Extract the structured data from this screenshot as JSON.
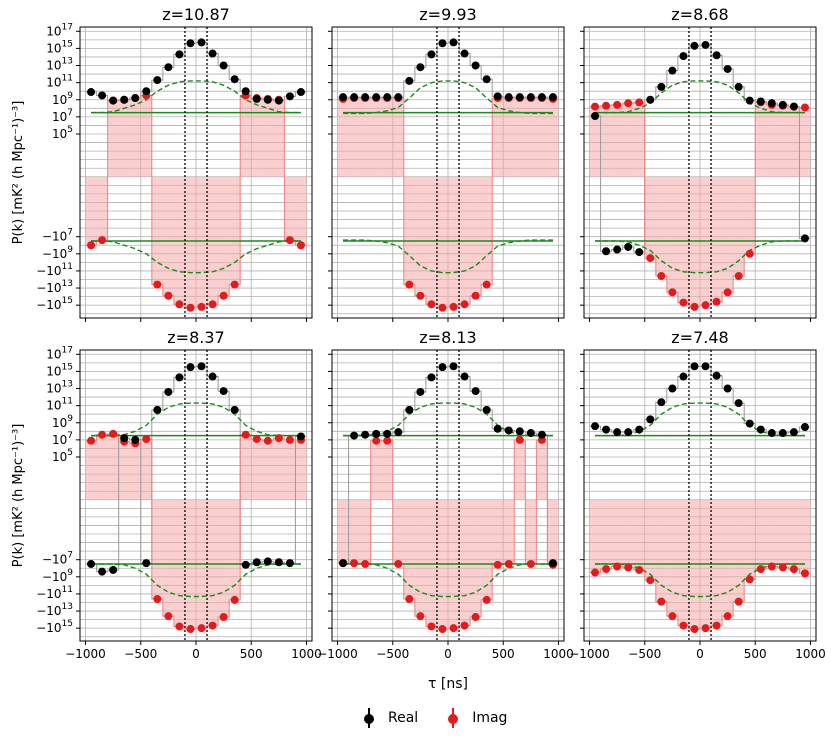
{
  "figure": {
    "ylabel": "P(k) [mK² (h Mpc⁻¹)⁻³]",
    "xlabel": "τ [ns]",
    "legend": [
      {
        "label": "Real",
        "color": "#000000"
      },
      {
        "label": "Imag",
        "color": "#e41a1c"
      }
    ],
    "x_ticks": [
      "-1000",
      "-500",
      "0",
      "500",
      "1000"
    ],
    "y_ticks": [
      {
        "base": "10",
        "exp": "17"
      },
      {
        "base": "10",
        "exp": "15"
      },
      {
        "base": "10",
        "exp": "13"
      },
      {
        "base": "10",
        "exp": "11"
      },
      {
        "base": "10",
        "exp": "9"
      },
      {
        "base": "10",
        "exp": "7"
      },
      {
        "base": "10",
        "exp": "5"
      },
      {
        "base": "−10",
        "exp": "7"
      },
      {
        "base": "−10",
        "exp": "9"
      },
      {
        "base": "−10",
        "exp": "11"
      },
      {
        "base": "−10",
        "exp": "13"
      },
      {
        "base": "−10",
        "exp": "15"
      }
    ]
  },
  "chart_data": {
    "type": "scatter",
    "x_unit": "ns",
    "xlim": [
      -1050,
      1050
    ],
    "ylim_signed_log10": [
      -16.5,
      17.5
    ],
    "x": [
      -950,
      -850,
      -750,
      -650,
      -550,
      -450,
      -350,
      -250,
      -150,
      -50,
      50,
      150,
      250,
      350,
      450,
      550,
      650,
      750,
      850,
      950
    ],
    "horizon_lines_ns": [
      -100,
      100
    ],
    "green_noise_level_log10": [
      7.5,
      -7.5
    ],
    "panels": [
      {
        "title": "z=10.87",
        "real": [
          9.9,
          9.5,
          8.9,
          9.0,
          9.2,
          10.0,
          11.3,
          12.8,
          14.3,
          15.6,
          15.7,
          14.4,
          13.0,
          11.4,
          10.0,
          9.1,
          9.0,
          8.9,
          9.4,
          9.9
        ],
        "imag": [
          -8.0,
          -7.4,
          8.9,
          9.0,
          9.2,
          9.5,
          -12.6,
          -13.9,
          -14.9,
          -15.3,
          -15.2,
          -14.9,
          -13.9,
          -12.6,
          9.5,
          9.2,
          9.1,
          9.0,
          -7.4,
          -8.0
        ],
        "green_upper": [
          7.5,
          7.5,
          7.6,
          8.0,
          8.4,
          9.0,
          10.0,
          10.7,
          11.1,
          11.2,
          11.2,
          11.1,
          10.7,
          10.0,
          9.0,
          8.4,
          8.0,
          7.6,
          7.5,
          7.5
        ]
      },
      {
        "title": "z=9.93",
        "real": [
          9.3,
          9.3,
          9.3,
          9.3,
          9.3,
          9.3,
          11.2,
          12.8,
          14.3,
          15.6,
          15.7,
          14.4,
          13.0,
          11.4,
          9.4,
          9.3,
          9.3,
          9.3,
          9.3,
          9.3
        ],
        "imag": [
          9.1,
          9.2,
          9.2,
          9.2,
          9.2,
          9.2,
          -12.6,
          -13.9,
          -14.9,
          -15.3,
          -15.2,
          -14.9,
          -13.9,
          -12.6,
          9.2,
          9.2,
          9.2,
          9.2,
          9.2,
          9.1
        ],
        "green_upper": [
          7.4,
          7.4,
          7.4,
          7.5,
          7.7,
          8.1,
          9.2,
          10.4,
          11.0,
          11.2,
          11.2,
          11.0,
          10.4,
          9.2,
          8.1,
          7.7,
          7.5,
          7.4,
          7.4,
          7.4
        ]
      },
      {
        "title": "z=8.68",
        "real": [
          7.1,
          -8.7,
          -8.5,
          -8.2,
          -8.8,
          9.0,
          10.5,
          12.4,
          14.1,
          15.3,
          15.4,
          14.2,
          12.6,
          10.5,
          8.9,
          8.8,
          8.6,
          8.4,
          8.2,
          -7.2
        ],
        "imag": [
          8.2,
          8.3,
          8.4,
          8.6,
          8.7,
          -9.5,
          -11.6,
          -13.5,
          -14.7,
          -15.2,
          -15.0,
          -14.6,
          -13.5,
          -11.6,
          -9.0,
          8.7,
          8.4,
          8.3,
          8.2,
          8.1
        ],
        "green_upper": [
          7.5,
          7.5,
          7.5,
          7.6,
          8.0,
          8.6,
          9.8,
          10.7,
          11.1,
          11.2,
          11.2,
          11.1,
          10.7,
          9.8,
          8.6,
          8.0,
          7.6,
          7.5,
          7.5,
          7.5
        ]
      },
      {
        "title": "z=8.37",
        "real": [
          -7.5,
          -8.4,
          -8.2,
          7.2,
          7.0,
          -7.4,
          10.5,
          12.6,
          14.3,
          15.5,
          15.6,
          14.4,
          12.7,
          10.5,
          -7.6,
          -7.3,
          -7.2,
          -7.3,
          -7.4,
          7.4
        ],
        "imag": [
          6.9,
          7.6,
          7.7,
          6.8,
          6.6,
          7.1,
          -11.6,
          -13.6,
          -14.8,
          -15.1,
          -15.0,
          -14.7,
          -13.7,
          -11.7,
          7.6,
          7.1,
          6.9,
          7.2,
          7.0,
          7.0
        ],
        "green_upper": [
          7.5,
          7.5,
          7.5,
          7.6,
          8.0,
          8.7,
          10.0,
          10.8,
          11.2,
          11.3,
          11.3,
          11.2,
          10.8,
          10.0,
          8.7,
          8.0,
          7.6,
          7.5,
          7.5,
          7.5
        ]
      },
      {
        "title": "z=8.13",
        "real": [
          -7.4,
          7.5,
          7.6,
          7.7,
          7.7,
          7.9,
          10.5,
          12.6,
          14.3,
          15.5,
          15.6,
          14.4,
          12.7,
          10.5,
          8.3,
          8.1,
          8.0,
          7.8,
          7.6,
          -7.4
        ],
        "imag": [
          -7.4,
          -7.4,
          -7.5,
          6.9,
          6.9,
          -7.5,
          -11.6,
          -13.6,
          -14.8,
          -15.1,
          -15.0,
          -14.7,
          -13.7,
          -11.7,
          -7.6,
          -7.5,
          7.0,
          -7.5,
          7.0,
          -7.6
        ],
        "green_upper": [
          7.5,
          7.5,
          7.5,
          7.6,
          8.0,
          8.7,
          10.0,
          10.8,
          11.2,
          11.3,
          11.3,
          11.2,
          10.8,
          10.0,
          8.7,
          8.0,
          7.6,
          7.5,
          7.5,
          7.5
        ]
      },
      {
        "title": "z=7.48",
        "real": [
          8.6,
          8.2,
          7.9,
          7.9,
          8.2,
          9.4,
          11.4,
          13.0,
          14.4,
          15.6,
          15.6,
          14.5,
          13.0,
          11.3,
          8.9,
          8.2,
          7.8,
          7.8,
          7.9,
          8.5
        ],
        "imag": [
          -8.5,
          -8.1,
          -7.8,
          -7.9,
          -8.2,
          -9.4,
          -11.9,
          -13.6,
          -14.7,
          -15.1,
          -15.0,
          -14.7,
          -13.6,
          -11.9,
          -9.3,
          -8.1,
          -7.8,
          -7.9,
          -8.1,
          -8.6
        ],
        "green_upper": [
          7.5,
          7.5,
          7.5,
          7.6,
          8.0,
          8.7,
          10.0,
          10.8,
          11.2,
          11.3,
          11.3,
          11.2,
          10.8,
          10.0,
          8.7,
          8.0,
          7.6,
          7.5,
          7.5,
          7.5
        ]
      }
    ]
  }
}
